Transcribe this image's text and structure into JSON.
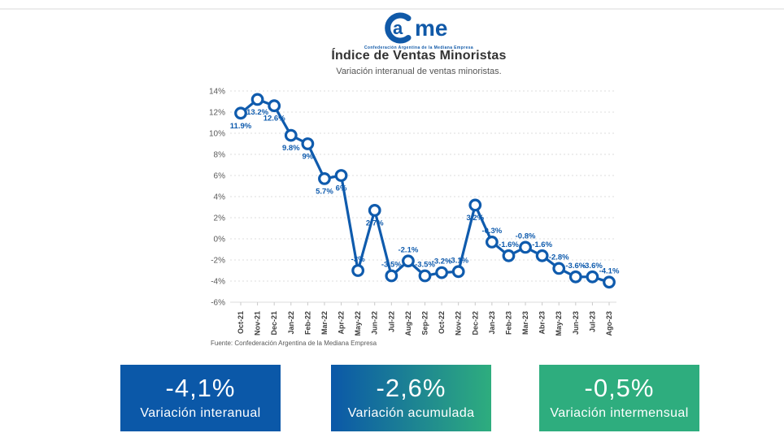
{
  "header": {
    "logo": {
      "inner_letter": "a",
      "rest_letters": "me",
      "tagline": "Confederación Argentina de la Mediana Empresa",
      "brand_color": "#1059a8"
    },
    "title": "Índice de Ventas Minoristas",
    "subtitle": "Variación interanual de ventas minoristas."
  },
  "chart_data": {
    "type": "line",
    "title": "Índice de Ventas Minoristas",
    "subtitle": "Variación interanual de ventas minoristas.",
    "categories": [
      "Oct-21",
      "Nov-21",
      "Dec-21",
      "Jan-22",
      "Feb-22",
      "Mar-22",
      "Apr-22",
      "May-22",
      "Jun-22",
      "Jul-22",
      "Aug-22",
      "Sep-22",
      "Oct-22",
      "Nov-22",
      "Dec-22",
      "Jan-23",
      "Feb-23",
      "Mar-23",
      "Abr-23",
      "May-23",
      "Jun-23",
      "Jul-23",
      "Ago-23"
    ],
    "values": [
      11.9,
      13.2,
      12.6,
      9.8,
      9,
      5.7,
      6,
      -3,
      2.7,
      -3.5,
      -2.1,
      -3.5,
      -3.2,
      -3.1,
      3.2,
      -0.3,
      -1.6,
      -0.8,
      -1.6,
      -2.8,
      -3.6,
      -3.6,
      -4.1
    ],
    "point_labels": [
      "11.9%",
      "13.2%",
      "12.6%",
      "9.8%",
      "9%",
      "5.7%",
      "6%",
      "-3%",
      "2.7%",
      "-3.5%",
      "-2.1%",
      "-3.5%",
      "-3.2%",
      "-3.1%",
      "3.2%",
      "-0.3%",
      "-1.6%",
      "-0.8%",
      "-1.6%",
      "-2.8%",
      "-3.6%",
      "-3.6%",
      "-4.1%"
    ],
    "label_positions": [
      "below",
      "below",
      "below",
      "below",
      "below",
      "below",
      "below",
      "above",
      "below",
      "above",
      "above",
      "above",
      "above",
      "above",
      "below",
      "above",
      "above",
      "above",
      "above",
      "above",
      "above",
      "above",
      "above"
    ],
    "y_ticks": [
      "14%",
      "12%",
      "10%",
      "8%",
      "6%",
      "4%",
      "2%",
      "0%",
      "-2%",
      "-4%",
      "-6%"
    ],
    "ylim": [
      -6,
      14
    ],
    "grid": "horizontal-dashed",
    "legend": "none",
    "marker": "open-circle",
    "line_color": "#0f5bad",
    "grid_color": "#dcdcdc",
    "axis_text_color": "#595959",
    "month_text_color": "#3d3d3d"
  },
  "footer": {
    "source": "Fuente: Confederación Argentina de la Mediana Empresa"
  },
  "summary_cards": [
    {
      "value": "-4,1%",
      "label": "Variación interanual",
      "bg": "#0b58a8"
    },
    {
      "value": "-2,6%",
      "label": "Variación acumulada",
      "bg": "#0b58a8",
      "bg_to": "#2ead7e"
    },
    {
      "value": "-0,5%",
      "label": "Variación intermensual",
      "bg": "#2ead7e"
    }
  ]
}
